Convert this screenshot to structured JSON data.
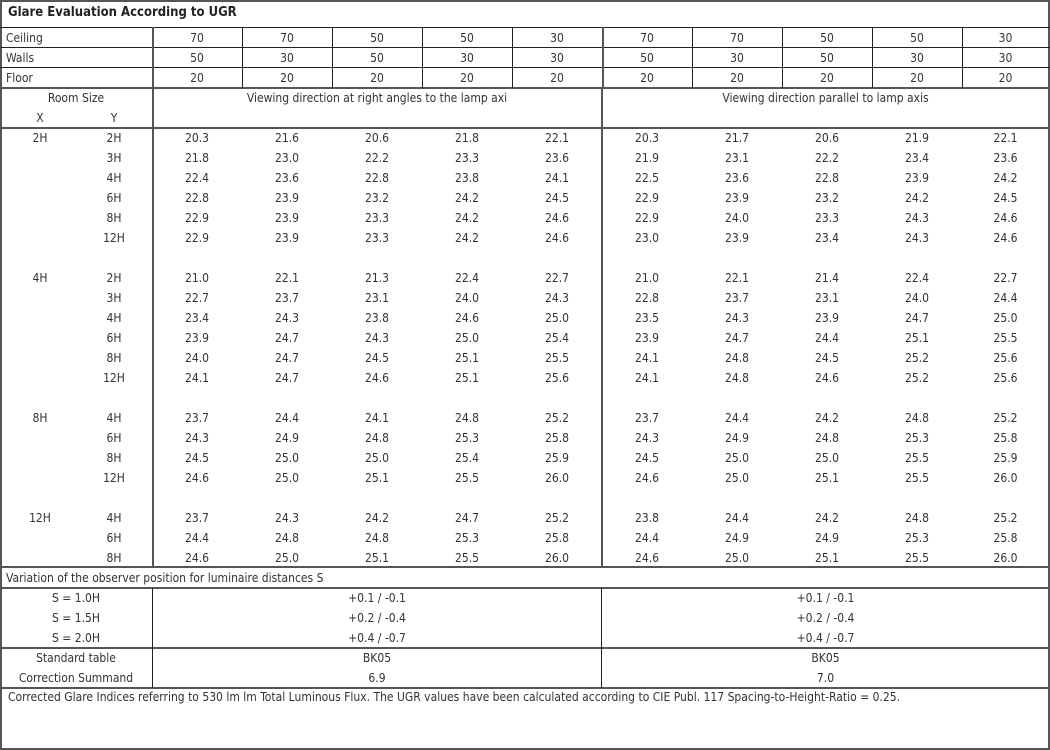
{
  "title": "Glare Evaluation According to UGR",
  "reflectance_rows": [
    {
      "label": "Ceiling",
      "values": [
        "70",
        "70",
        "50",
        "50",
        "30",
        "70",
        "70",
        "50",
        "50",
        "30"
      ]
    },
    {
      "label": "Walls",
      "values": [
        "50",
        "30",
        "50",
        "30",
        "30",
        "50",
        "30",
        "50",
        "30",
        "30"
      ]
    },
    {
      "label": "Floor",
      "values": [
        "20",
        "20",
        "20",
        "20",
        "20",
        "20",
        "20",
        "20",
        "20",
        "20"
      ]
    }
  ],
  "room_size_label": "Room Size",
  "x_label": "X",
  "y_label": "Y",
  "direction_left": "Viewing direction at right angles to the lamp axi",
  "direction_right": "Viewing direction parallel to lamp axis",
  "groups": [
    {
      "x": "2H",
      "rows": [
        {
          "y": "2H",
          "values": [
            "20.3",
            "21.6",
            "20.6",
            "21.8",
            "22.1",
            "20.3",
            "21.7",
            "20.6",
            "21.9",
            "22.1"
          ]
        },
        {
          "y": "3H",
          "values": [
            "21.8",
            "23.0",
            "22.2",
            "23.3",
            "23.6",
            "21.9",
            "23.1",
            "22.2",
            "23.4",
            "23.6"
          ]
        },
        {
          "y": "4H",
          "values": [
            "22.4",
            "23.6",
            "22.8",
            "23.8",
            "24.1",
            "22.5",
            "23.6",
            "22.8",
            "23.9",
            "24.2"
          ]
        },
        {
          "y": "6H",
          "values": [
            "22.8",
            "23.9",
            "23.2",
            "24.2",
            "24.5",
            "22.9",
            "23.9",
            "23.2",
            "24.2",
            "24.5"
          ]
        },
        {
          "y": "8H",
          "values": [
            "22.9",
            "23.9",
            "23.3",
            "24.2",
            "24.6",
            "22.9",
            "24.0",
            "23.3",
            "24.3",
            "24.6"
          ]
        },
        {
          "y": "12H",
          "values": [
            "22.9",
            "23.9",
            "23.3",
            "24.2",
            "24.6",
            "23.0",
            "23.9",
            "23.4",
            "24.3",
            "24.6"
          ]
        }
      ]
    },
    {
      "x": "4H",
      "rows": [
        {
          "y": "2H",
          "values": [
            "21.0",
            "22.1",
            "21.3",
            "22.4",
            "22.7",
            "21.0",
            "22.1",
            "21.4",
            "22.4",
            "22.7"
          ]
        },
        {
          "y": "3H",
          "values": [
            "22.7",
            "23.7",
            "23.1",
            "24.0",
            "24.3",
            "22.8",
            "23.7",
            "23.1",
            "24.0",
            "24.4"
          ]
        },
        {
          "y": "4H",
          "values": [
            "23.4",
            "24.3",
            "23.8",
            "24.6",
            "25.0",
            "23.5",
            "24.3",
            "23.9",
            "24.7",
            "25.0"
          ]
        },
        {
          "y": "6H",
          "values": [
            "23.9",
            "24.7",
            "24.3",
            "25.0",
            "25.4",
            "23.9",
            "24.7",
            "24.4",
            "25.1",
            "25.5"
          ]
        },
        {
          "y": "8H",
          "values": [
            "24.0",
            "24.7",
            "24.5",
            "25.1",
            "25.5",
            "24.1",
            "24.8",
            "24.5",
            "25.2",
            "25.6"
          ]
        },
        {
          "y": "12H",
          "values": [
            "24.1",
            "24.7",
            "24.6",
            "25.1",
            "25.6",
            "24.1",
            "24.8",
            "24.6",
            "25.2",
            "25.6"
          ]
        }
      ]
    },
    {
      "x": "8H",
      "rows": [
        {
          "y": "4H",
          "values": [
            "23.7",
            "24.4",
            "24.1",
            "24.8",
            "25.2",
            "23.7",
            "24.4",
            "24.2",
            "24.8",
            "25.2"
          ]
        },
        {
          "y": "6H",
          "values": [
            "24.3",
            "24.9",
            "24.8",
            "25.3",
            "25.8",
            "24.3",
            "24.9",
            "24.8",
            "25.3",
            "25.8"
          ]
        },
        {
          "y": "8H",
          "values": [
            "24.5",
            "25.0",
            "25.0",
            "25.4",
            "25.9",
            "24.5",
            "25.0",
            "25.0",
            "25.5",
            "25.9"
          ]
        },
        {
          "y": "12H",
          "values": [
            "24.6",
            "25.0",
            "25.1",
            "25.5",
            "26.0",
            "24.6",
            "25.0",
            "25.1",
            "25.5",
            "26.0"
          ]
        }
      ]
    },
    {
      "x": "12H",
      "rows": [
        {
          "y": "4H",
          "values": [
            "23.7",
            "24.3",
            "24.2",
            "24.7",
            "25.2",
            "23.8",
            "24.4",
            "24.2",
            "24.8",
            "25.2"
          ]
        },
        {
          "y": "6H",
          "values": [
            "24.4",
            "24.8",
            "24.8",
            "25.3",
            "25.8",
            "24.4",
            "24.9",
            "24.9",
            "25.3",
            "25.8"
          ]
        },
        {
          "y": "8H",
          "values": [
            "24.6",
            "25.0",
            "25.1",
            "25.5",
            "26.0",
            "24.6",
            "25.0",
            "25.1",
            "25.5",
            "26.0"
          ]
        }
      ]
    }
  ],
  "variation_title": "Variation of the observer position for luminaire distances S",
  "variation_rows": [
    {
      "label": "S = 1.0H",
      "left": "+0.1 / -0.1",
      "right": "+0.1 / -0.1"
    },
    {
      "label": "S = 1.5H",
      "left": "+0.2 / -0.4",
      "right": "+0.2 / -0.4"
    },
    {
      "label": "S = 2.0H",
      "left": "+0.4 / -0.7",
      "right": "+0.4 / -0.7"
    }
  ],
  "standard_table": {
    "label": "Standard table",
    "left": "BK05",
    "right": "BK05"
  },
  "correction_summand": {
    "label": "Correction Summand",
    "left": "6.9",
    "right": "7.0"
  },
  "footnote": "Corrected Glare Indices referring to 530 lm lm Total Luminous Flux. The UGR values have been calculated according to CIE Publ. 117    Spacing-to-Height-Ratio = 0.25."
}
